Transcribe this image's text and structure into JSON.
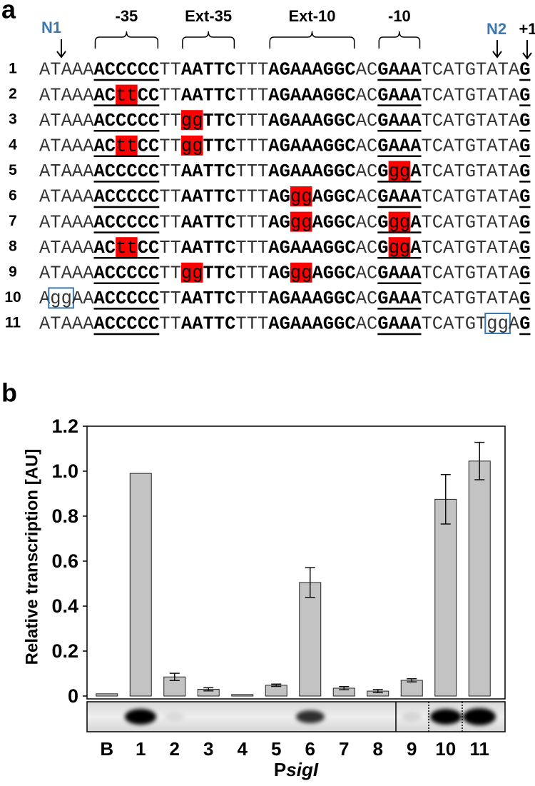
{
  "panel_a": {
    "label": "a",
    "markers": {
      "n1": "N1",
      "n2": "N2",
      "plus1": "+1"
    },
    "regions": [
      "-35",
      "Ext-35",
      "Ext-10",
      "-10"
    ],
    "rows": [
      {
        "number": "1",
        "segments": [
          {
            "text": "ATAAA",
            "style": "plain"
          },
          {
            "text": "ACCCCC",
            "style": "core"
          },
          {
            "text": "TT",
            "style": "plain"
          },
          {
            "text": "AATTC",
            "style": "ext"
          },
          {
            "text": "TTT",
            "style": "plain"
          },
          {
            "text": "AGAAAGGC",
            "style": "ext"
          },
          {
            "text": "AC",
            "style": "plain"
          },
          {
            "text": "GAAA",
            "style": "core"
          },
          {
            "text": "TCATGTATA",
            "style": "plain"
          },
          {
            "text": "G",
            "style": "core"
          }
        ]
      },
      {
        "number": "2",
        "segments": [
          {
            "text": "ATAAA",
            "style": "plain"
          },
          {
            "text": "AC",
            "style": "core"
          },
          {
            "text": "tt",
            "style": "core-mut"
          },
          {
            "text": "CC",
            "style": "core"
          },
          {
            "text": "TT",
            "style": "plain"
          },
          {
            "text": "AATTC",
            "style": "ext"
          },
          {
            "text": "TTT",
            "style": "plain"
          },
          {
            "text": "AGAAAGGC",
            "style": "ext"
          },
          {
            "text": "AC",
            "style": "plain"
          },
          {
            "text": "GAAA",
            "style": "core"
          },
          {
            "text": "TCATGTATA",
            "style": "plain"
          },
          {
            "text": "G",
            "style": "core"
          }
        ]
      },
      {
        "number": "3",
        "segments": [
          {
            "text": "ATAAA",
            "style": "plain"
          },
          {
            "text": "ACCCCC",
            "style": "core"
          },
          {
            "text": "TT",
            "style": "plain"
          },
          {
            "text": "gg",
            "style": "ext-mut"
          },
          {
            "text": "TTC",
            "style": "ext"
          },
          {
            "text": "TTT",
            "style": "plain"
          },
          {
            "text": "AGAAAGGC",
            "style": "ext"
          },
          {
            "text": "AC",
            "style": "plain"
          },
          {
            "text": "GAAA",
            "style": "core"
          },
          {
            "text": "TCATGTATA",
            "style": "plain"
          },
          {
            "text": "G",
            "style": "core"
          }
        ]
      },
      {
        "number": "4",
        "segments": [
          {
            "text": "ATAAA",
            "style": "plain"
          },
          {
            "text": "AC",
            "style": "core"
          },
          {
            "text": "tt",
            "style": "core-mut"
          },
          {
            "text": "CC",
            "style": "core"
          },
          {
            "text": "TT",
            "style": "plain"
          },
          {
            "text": "gg",
            "style": "ext-mut"
          },
          {
            "text": "TTC",
            "style": "ext"
          },
          {
            "text": "TTT",
            "style": "plain"
          },
          {
            "text": "AGAAAGGC",
            "style": "ext"
          },
          {
            "text": "AC",
            "style": "plain"
          },
          {
            "text": "GAAA",
            "style": "core"
          },
          {
            "text": "TCATGTATA",
            "style": "plain"
          },
          {
            "text": "G",
            "style": "core"
          }
        ]
      },
      {
        "number": "5",
        "segments": [
          {
            "text": "ATAAA",
            "style": "plain"
          },
          {
            "text": "ACCCCC",
            "style": "core"
          },
          {
            "text": "TT",
            "style": "plain"
          },
          {
            "text": "AATTC",
            "style": "ext"
          },
          {
            "text": "TTT",
            "style": "plain"
          },
          {
            "text": "AGAAAGGC",
            "style": "ext"
          },
          {
            "text": "AC",
            "style": "plain"
          },
          {
            "text": "G",
            "style": "core"
          },
          {
            "text": "gg",
            "style": "core-mut"
          },
          {
            "text": "A",
            "style": "core"
          },
          {
            "text": "TCATGTATA",
            "style": "plain"
          },
          {
            "text": "G",
            "style": "core"
          }
        ]
      },
      {
        "number": "6",
        "segments": [
          {
            "text": "ATAAA",
            "style": "plain"
          },
          {
            "text": "ACCCCC",
            "style": "core"
          },
          {
            "text": "TT",
            "style": "plain"
          },
          {
            "text": "AATTC",
            "style": "ext"
          },
          {
            "text": "TTT",
            "style": "plain"
          },
          {
            "text": "AG",
            "style": "ext"
          },
          {
            "text": "gg",
            "style": "ext-mut"
          },
          {
            "text": "AGGC",
            "style": "ext"
          },
          {
            "text": "AC",
            "style": "plain"
          },
          {
            "text": "GAAA",
            "style": "core"
          },
          {
            "text": "TCATGTATA",
            "style": "plain"
          },
          {
            "text": "G",
            "style": "core"
          }
        ]
      },
      {
        "number": "7",
        "segments": [
          {
            "text": "ATAAA",
            "style": "plain"
          },
          {
            "text": "ACCCCC",
            "style": "core"
          },
          {
            "text": "TT",
            "style": "plain"
          },
          {
            "text": "AATTC",
            "style": "ext"
          },
          {
            "text": "TTT",
            "style": "plain"
          },
          {
            "text": "AG",
            "style": "ext"
          },
          {
            "text": "gg",
            "style": "ext-mut"
          },
          {
            "text": "AGGC",
            "style": "ext"
          },
          {
            "text": "AC",
            "style": "plain"
          },
          {
            "text": "G",
            "style": "core"
          },
          {
            "text": "gg",
            "style": "core-mut"
          },
          {
            "text": "A",
            "style": "core"
          },
          {
            "text": "TCATGTATA",
            "style": "plain"
          },
          {
            "text": "G",
            "style": "core"
          }
        ]
      },
      {
        "number": "8",
        "segments": [
          {
            "text": "ATAAA",
            "style": "plain"
          },
          {
            "text": "AC",
            "style": "core"
          },
          {
            "text": "tt",
            "style": "core-mut"
          },
          {
            "text": "CC",
            "style": "core"
          },
          {
            "text": "TT",
            "style": "plain"
          },
          {
            "text": "AATTC",
            "style": "ext"
          },
          {
            "text": "TTT",
            "style": "plain"
          },
          {
            "text": "AGAAAGGC",
            "style": "ext"
          },
          {
            "text": "AC",
            "style": "plain"
          },
          {
            "text": "G",
            "style": "core"
          },
          {
            "text": "gg",
            "style": "core-mut"
          },
          {
            "text": "A",
            "style": "core"
          },
          {
            "text": "TCATGTATA",
            "style": "plain"
          },
          {
            "text": "G",
            "style": "core"
          }
        ]
      },
      {
        "number": "9",
        "segments": [
          {
            "text": "ATAAA",
            "style": "plain"
          },
          {
            "text": "ACCCCC",
            "style": "core"
          },
          {
            "text": "TT",
            "style": "plain"
          },
          {
            "text": "gg",
            "style": "ext-mut"
          },
          {
            "text": "TTC",
            "style": "ext"
          },
          {
            "text": "TTT",
            "style": "plain"
          },
          {
            "text": "AG",
            "style": "ext"
          },
          {
            "text": "gg",
            "style": "ext-mut"
          },
          {
            "text": "AGGC",
            "style": "ext"
          },
          {
            "text": "AC",
            "style": "plain"
          },
          {
            "text": "GAAA",
            "style": "core"
          },
          {
            "text": "TCATGTATA",
            "style": "plain"
          },
          {
            "text": "G",
            "style": "core"
          }
        ]
      },
      {
        "number": "10",
        "segments": [
          {
            "text": "A",
            "style": "plain"
          },
          {
            "text": "gg",
            "style": "box"
          },
          {
            "text": "AA",
            "style": "plain"
          },
          {
            "text": "ACCCCC",
            "style": "core"
          },
          {
            "text": "TT",
            "style": "plain"
          },
          {
            "text": "AATTC",
            "style": "ext"
          },
          {
            "text": "TTT",
            "style": "plain"
          },
          {
            "text": "AGAAAGGC",
            "style": "ext"
          },
          {
            "text": "AC",
            "style": "plain"
          },
          {
            "text": "GAAA",
            "style": "core"
          },
          {
            "text": "TCATGTATA",
            "style": "plain"
          },
          {
            "text": "G",
            "style": "core"
          }
        ]
      },
      {
        "number": "11",
        "segments": [
          {
            "text": "ATAAA",
            "style": "plain"
          },
          {
            "text": "ACCCCC",
            "style": "core"
          },
          {
            "text": "TT",
            "style": "plain"
          },
          {
            "text": "AATTC",
            "style": "ext"
          },
          {
            "text": "TTT",
            "style": "plain"
          },
          {
            "text": "AGAAAGGC",
            "style": "ext"
          },
          {
            "text": "AC",
            "style": "plain"
          },
          {
            "text": "GAAA",
            "style": "core"
          },
          {
            "text": "TCATGT",
            "style": "plain"
          },
          {
            "text": "gg",
            "style": "box"
          },
          {
            "text": "A",
            "style": "plain"
          },
          {
            "text": "G",
            "style": "core"
          }
        ]
      }
    ]
  },
  "chart_data": {
    "type": "bar",
    "panel_label": "b",
    "ylabel": "Relative transcription [AU]",
    "xlabel_prefix": "P",
    "xlabel_italic": "sigI",
    "categories": [
      "B",
      "1",
      "2",
      "3",
      "4",
      "5",
      "6",
      "7",
      "8",
      "9",
      "10",
      "11"
    ],
    "values": [
      0.01,
      0.99,
      0.085,
      0.03,
      0.007,
      0.048,
      0.505,
      0.035,
      0.022,
      0.07,
      0.875,
      1.045
    ],
    "errors": [
      null,
      null,
      0.016,
      0.007,
      null,
      0.005,
      0.066,
      0.007,
      0.007,
      0.007,
      0.11,
      0.083
    ],
    "color": "#c3c3c3",
    "ylim": [
      0,
      1.2
    ],
    "yticks": [
      0,
      0.2,
      0.4,
      0.6,
      0.8,
      {
        "value": 1,
        "label": "1.0"
      },
      1.2
    ]
  }
}
